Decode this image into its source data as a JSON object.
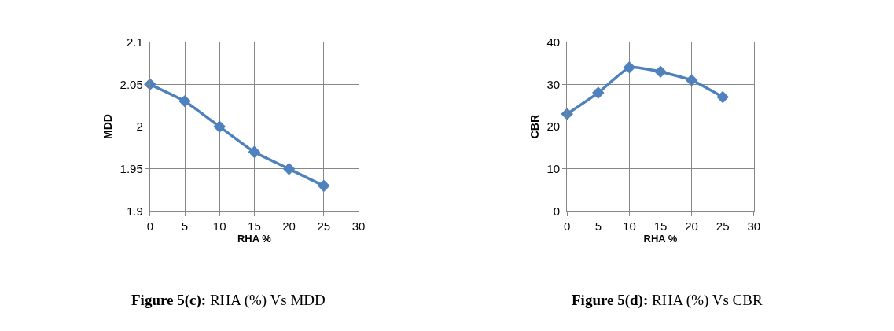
{
  "chart_data": [
    {
      "type": "line",
      "xlabel": "RHA %",
      "ylabel": "MDD",
      "x": [
        0,
        5,
        10,
        15,
        20,
        25
      ],
      "series": [
        {
          "color": "#4f81bd",
          "values": [
            2.05,
            2.03,
            2.0,
            1.97,
            1.95,
            1.93
          ]
        }
      ],
      "xlim": [
        0,
        30
      ],
      "xticks": [
        0,
        5,
        10,
        15,
        20,
        25,
        30
      ],
      "ylim": [
        1.9,
        2.1
      ],
      "yticks": [
        1.9,
        1.95,
        2,
        2.05,
        2.1
      ],
      "grid": true,
      "marker": "diamond",
      "line_style": "solid",
      "annotations": [
        "Figure 5(c): RHA (%) Vs MDD"
      ]
    },
    {
      "type": "line",
      "xlabel": "RHA %",
      "ylabel": "CBR",
      "x": [
        0,
        5,
        10,
        15,
        20,
        25
      ],
      "series": [
        {
          "color": "#4f81bd",
          "values": [
            23,
            28,
            34,
            33,
            31,
            27
          ]
        }
      ],
      "xlim": [
        0,
        30
      ],
      "xticks": [
        0,
        5,
        10,
        15,
        20,
        25,
        30
      ],
      "ylim": [
        0,
        40
      ],
      "yticks": [
        0,
        10,
        20,
        30,
        40
      ],
      "grid": true,
      "marker": "diamond",
      "line_style": "solid",
      "annotations": [
        "Figure 5(d): RHA (%) Vs CBR"
      ]
    }
  ]
}
